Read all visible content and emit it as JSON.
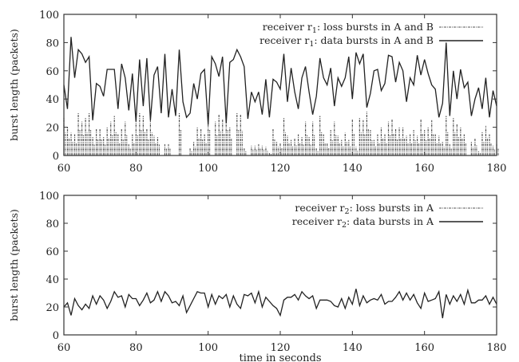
{
  "chart_data": [
    {
      "type": "line",
      "title": "",
      "xlabel": "",
      "ylabel": "burst length (packets)",
      "xlim": [
        60,
        180
      ],
      "ylim": [
        0,
        100
      ],
      "xticks": [
        60,
        80,
        100,
        120,
        140,
        160,
        180
      ],
      "yticks": [
        0,
        20,
        40,
        60,
        80,
        100
      ],
      "grid": false,
      "legend_position": "top-right",
      "x_start": 60,
      "x_step": 1,
      "series": [
        {
          "name": "receiver r1: loss bursts in A and B",
          "label_prefix": "receiver r",
          "label_sub": "1",
          "label_suffix": ": loss bursts in A and B",
          "style": "impulses-dashed",
          "values": [
            27,
            20,
            16,
            15,
            30,
            24,
            27,
            30,
            13,
            19,
            19,
            13,
            20,
            24,
            28,
            15,
            19,
            24,
            8,
            15,
            24,
            30,
            28,
            19,
            27,
            14,
            13,
            0,
            8,
            8,
            0,
            0,
            30,
            0,
            0,
            5,
            10,
            20,
            19,
            15,
            30,
            0,
            24,
            29,
            26,
            30,
            20,
            0,
            30,
            29,
            5,
            0,
            7,
            7,
            8,
            7,
            6,
            2,
            19,
            10,
            9,
            27,
            14,
            11,
            12,
            15,
            13,
            24,
            13,
            24,
            5,
            28,
            15,
            9,
            18,
            24,
            14,
            11,
            16,
            11,
            26,
            6,
            27,
            25,
            31,
            18,
            11,
            15,
            20,
            15,
            24,
            26,
            19,
            20,
            20,
            14,
            15,
            18,
            14,
            26,
            18,
            20,
            25,
            15,
            14,
            10,
            28,
            8,
            27,
            22,
            20,
            15,
            0,
            10,
            12,
            3,
            17,
            21,
            15,
            7,
            8
          ]
        },
        {
          "name": "receiver r1: data bursts in A and B",
          "label_prefix": "receiver r",
          "label_sub": "1",
          "label_suffix": ": data bursts in A and B",
          "style": "solid",
          "values": [
            50,
            33,
            84,
            55,
            75,
            72,
            66,
            70,
            25,
            51,
            49,
            42,
            61,
            61,
            61,
            33,
            65,
            55,
            32,
            58,
            24,
            68,
            35,
            69,
            25,
            57,
            63,
            30,
            72,
            27,
            47,
            28,
            75,
            38,
            27,
            30,
            51,
            40,
            58,
            61,
            22,
            70,
            65,
            56,
            70,
            23,
            66,
            68,
            75,
            70,
            63,
            26,
            45,
            38,
            45,
            29,
            54,
            27,
            54,
            52,
            47,
            72,
            38,
            62,
            45,
            33,
            55,
            63,
            45,
            29,
            42,
            69,
            55,
            50,
            62,
            35,
            55,
            49,
            55,
            70,
            40,
            73,
            65,
            72,
            34,
            44,
            60,
            61,
            46,
            51,
            71,
            70,
            52,
            66,
            60,
            38,
            55,
            50,
            71,
            57,
            68,
            58,
            50,
            47,
            27,
            37,
            80,
            28,
            60,
            40,
            61,
            48,
            52,
            28,
            40,
            48,
            33,
            55,
            27,
            46,
            35
          ]
        }
      ]
    },
    {
      "type": "line",
      "title": "",
      "xlabel": "time in seconds",
      "ylabel": "burst length (packets)",
      "xlim": [
        60,
        180
      ],
      "ylim": [
        0,
        100
      ],
      "xticks": [
        60,
        80,
        100,
        120,
        140,
        160,
        180
      ],
      "yticks": [
        0,
        20,
        40,
        60,
        80,
        100
      ],
      "grid": false,
      "legend_position": "top-right",
      "x_start": 60,
      "x_step": 1,
      "series": [
        {
          "name": "receiver r2: loss bursts in A",
          "label_prefix": "receiver r",
          "label_sub": "2",
          "label_suffix": ": loss bursts in A",
          "style": "impulses-dashed",
          "values": []
        },
        {
          "name": "receiver r2: data bursts in A",
          "label_prefix": "receiver r",
          "label_sub": "2",
          "label_suffix": ": data bursts in A",
          "style": "solid",
          "values": [
            20,
            23,
            14,
            26,
            21,
            18,
            22,
            19,
            28,
            22,
            28,
            25,
            19,
            24,
            31,
            27,
            28,
            20,
            29,
            26,
            26,
            21,
            25,
            30,
            23,
            25,
            31,
            24,
            31,
            28,
            23,
            24,
            21,
            28,
            16,
            21,
            26,
            31,
            30,
            30,
            20,
            29,
            22,
            28,
            26,
            29,
            20,
            28,
            22,
            19,
            29,
            28,
            30,
            23,
            31,
            20,
            27,
            24,
            21,
            19,
            14,
            25,
            27,
            27,
            29,
            25,
            31,
            28,
            26,
            28,
            19,
            25,
            25,
            25,
            24,
            21,
            20,
            26,
            19,
            27,
            22,
            33,
            21,
            28,
            23,
            25,
            26,
            25,
            29,
            22,
            24,
            24,
            27,
            31,
            25,
            30,
            25,
            29,
            23,
            19,
            30,
            24,
            25,
            26,
            31,
            12,
            29,
            22,
            28,
            24,
            29,
            22,
            32,
            23,
            23,
            25,
            25,
            28,
            22,
            27,
            22
          ]
        }
      ]
    }
  ],
  "colors": {
    "line": "#222222",
    "loss": "#555555",
    "axis": "#333333"
  }
}
